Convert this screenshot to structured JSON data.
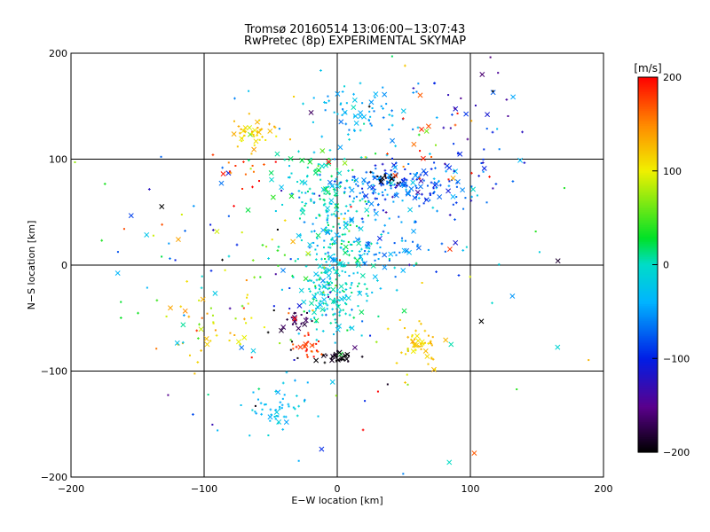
{
  "chart_data": {
    "type": "scatter",
    "title": "Tromsø 20160514 13:06:00−13:07:43",
    "subtitle": "RwPretec (8p) EXPERIMENTAL SKYMAP",
    "xlabel": "E−W location [km]",
    "ylabel": "N−S location [km]",
    "xlim": [
      -200,
      200
    ],
    "ylim": [
      -200,
      200
    ],
    "xticks": [
      -200,
      -100,
      0,
      100,
      200
    ],
    "yticks": [
      -200,
      -100,
      0,
      100,
      200
    ],
    "grid": true,
    "colorbar": {
      "label": "[m/s]",
      "range": [
        -200,
        200
      ],
      "ticks": [
        200,
        100,
        0,
        -100,
        -200
      ],
      "colormap": "rainbow (black-purple-blue-cyan-green-yellow-red)"
    },
    "clusters": [
      {
        "name": "central-green-cyan",
        "x": 0,
        "y": 10,
        "sx": 14,
        "sy": 32,
        "n": 220,
        "v": -10,
        "vs": 20
      },
      {
        "name": "central-lower-green",
        "x": -5,
        "y": -30,
        "sx": 10,
        "sy": 18,
        "n": 90,
        "v": -15,
        "vs": 18
      },
      {
        "name": "upper-blue-cyan-arc",
        "x": 45,
        "y": 75,
        "sx": 28,
        "sy": 12,
        "n": 200,
        "v": -75,
        "vs": 25
      },
      {
        "name": "top-cyan",
        "x": 25,
        "y": 145,
        "sx": 22,
        "sy": 14,
        "n": 70,
        "v": -40,
        "vs": 15
      },
      {
        "name": "upper-central-green",
        "x": -15,
        "y": 80,
        "sx": 16,
        "sy": 18,
        "n": 90,
        "v": 5,
        "vs": 18
      },
      {
        "name": "mid-cyan-right",
        "x": 40,
        "y": 20,
        "sx": 20,
        "sy": 14,
        "n": 60,
        "v": -55,
        "vs": 15
      },
      {
        "name": "upper-left-orange",
        "x": -62,
        "y": 125,
        "sx": 8,
        "sy": 7,
        "n": 45,
        "v": 120,
        "vs": 15
      },
      {
        "name": "orange-lower-right",
        "x": 60,
        "y": -78,
        "sx": 8,
        "sy": 12,
        "n": 55,
        "v": 120,
        "vs": 12
      },
      {
        "name": "left-yellow",
        "x": -95,
        "y": -60,
        "sx": 20,
        "sy": 20,
        "n": 35,
        "v": 110,
        "vs": 25
      },
      {
        "name": "black-cluster-low",
        "x": -2,
        "y": -87,
        "sx": 9,
        "sy": 3,
        "n": 30,
        "v": -195,
        "vs": 5
      },
      {
        "name": "black-cluster-upper",
        "x": 38,
        "y": 82,
        "sx": 6,
        "sy": 3,
        "n": 15,
        "v": -195,
        "vs": 5
      },
      {
        "name": "purple-cluster",
        "x": -30,
        "y": -52,
        "sx": 6,
        "sy": 5,
        "n": 20,
        "v": -175,
        "vs": 10
      },
      {
        "name": "red-lower-center",
        "x": -20,
        "y": -75,
        "sx": 6,
        "sy": 6,
        "n": 25,
        "v": 180,
        "vs": 15
      },
      {
        "name": "cyan-lower-left",
        "x": -45,
        "y": -135,
        "sx": 15,
        "sy": 12,
        "n": 50,
        "v": -30,
        "vs": 12
      },
      {
        "name": "upper-right-blue",
        "x": 100,
        "y": 130,
        "sx": 25,
        "sy": 45,
        "n": 50,
        "v": -110,
        "vs": 30
      },
      {
        "name": "right-red",
        "x": 65,
        "y": 120,
        "sx": 15,
        "sy": 20,
        "n": 15,
        "v": 180,
        "vs": 15
      },
      {
        "name": "left-mixed",
        "x": -90,
        "y": 0,
        "sx": 35,
        "sy": 50,
        "n": 50,
        "v": 30,
        "vs": 120
      },
      {
        "name": "scatter-background",
        "x": 0,
        "y": 0,
        "sx": 90,
        "sy": 90,
        "n": 160,
        "v": 0,
        "vs": 110
      },
      {
        "name": "left-magenta-dots",
        "x": -75,
        "y": 90,
        "sx": 10,
        "sy": 12,
        "n": 15,
        "v": 180,
        "vs": 20
      }
    ]
  }
}
